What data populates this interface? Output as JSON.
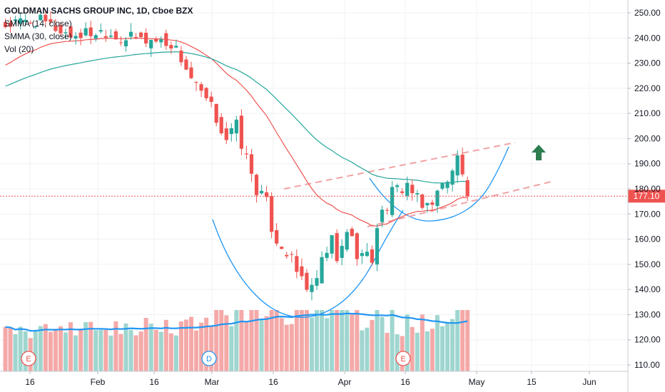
{
  "chart_data": {
    "type": "candlestick",
    "title": "GOLDMAN SACHS GROUP INC, 1D, Cboe BZX",
    "indicators": [
      "SMMA (14, close)",
      "SMMA (30, close)",
      "Vol (20)"
    ],
    "y_ticks": [
      "250.00",
      "240.00",
      "230.00",
      "220.00",
      "210.00",
      "200.00",
      "190.00",
      "180.00",
      "170.00",
      "160.00",
      "150.00",
      "140.00",
      "130.00",
      "120.00",
      "110.00"
    ],
    "ylim": [
      107,
      254
    ],
    "x_ticks": [
      "16",
      "Feb",
      "16",
      "Mar",
      "16",
      "Apr",
      "16",
      "May",
      "15",
      "Jun"
    ],
    "last_price": "177.10",
    "last_price_value": 177.1,
    "earnings_markers": [
      "E",
      "D",
      "E"
    ],
    "colors": {
      "up": "#26a69a",
      "down": "#ef5350",
      "vol_up": "#9fd6cf",
      "vol_down": "#f4a9a8",
      "smma14": "#ef5350",
      "smma30": "#26a69a",
      "vol_ma": "#2196f3",
      "curve": "#2196f3",
      "channel": "#f0a3a6",
      "arrow": "#2e7d4f",
      "price_line": "#ef5350"
    },
    "annotations": [
      "rounded-bottom-curve",
      "cup-curve",
      "rising-channel-dashed",
      "up-arrow"
    ]
  }
}
